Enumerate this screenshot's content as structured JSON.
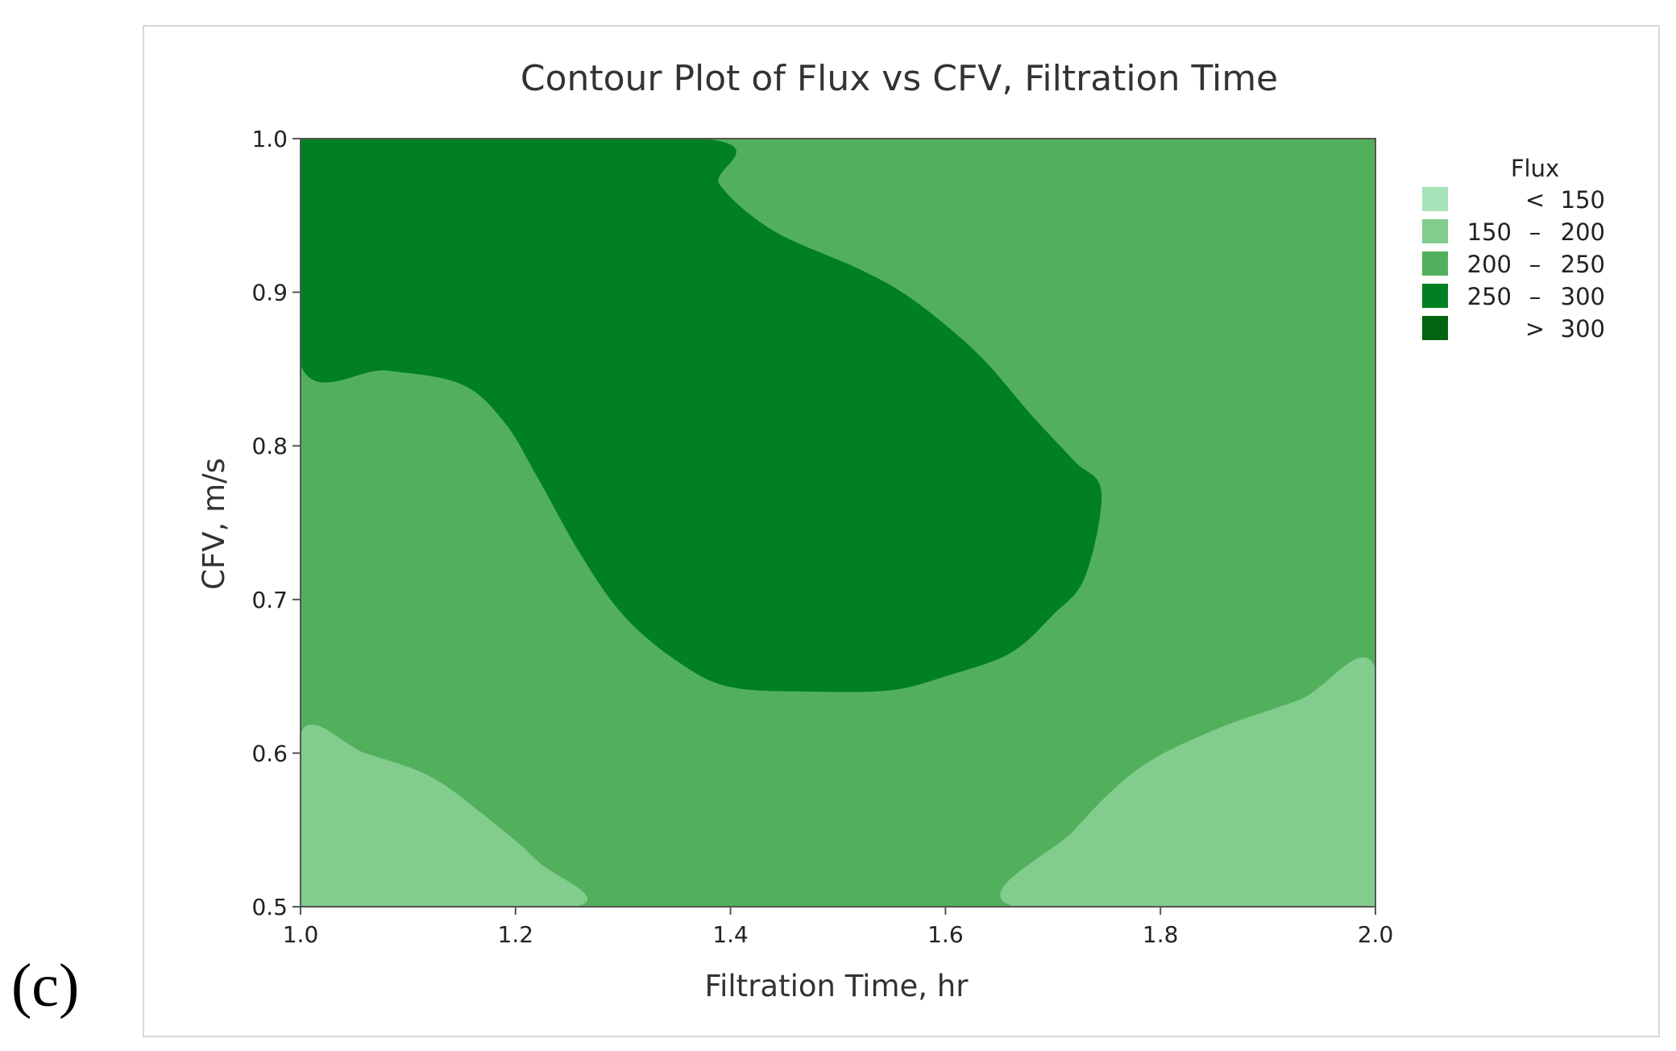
{
  "panel_label": "(c)",
  "chart_data": {
    "type": "contour",
    "title": "Contour Plot of Flux vs CFV, Filtration Time",
    "xlabel": "Filtration Time, hr",
    "ylabel": "CFV, m/s",
    "xlim": [
      1.0,
      2.0
    ],
    "ylim": [
      0.5,
      1.0
    ],
    "xticks": [
      "1.0",
      "1.2",
      "1.4",
      "1.6",
      "1.8",
      "2.0"
    ],
    "yticks": [
      "0.5",
      "0.6",
      "0.7",
      "0.8",
      "0.9",
      "1.0"
    ],
    "grid": false,
    "legend": {
      "title": "Flux",
      "placement": "right",
      "entries": [
        {
          "op": "<",
          "low": "",
          "high": "150",
          "color": "#a6e3b8"
        },
        {
          "op": "–",
          "low": "150",
          "high": "200",
          "color": "#82cc8e"
        },
        {
          "op": "–",
          "low": "200",
          "high": "250",
          "color": "#52b05c"
        },
        {
          "op": "–",
          "low": "250",
          "high": "300",
          "color": "#008020"
        },
        {
          "op": ">",
          "low": "",
          "high": "300",
          "color": "#006410"
        }
      ]
    },
    "regions": [
      {
        "level": "200 – 250",
        "color": "#52b05c",
        "boundary": [
          [
            1.0,
            0.5
          ],
          [
            2.0,
            0.5
          ],
          [
            2.0,
            1.0
          ],
          [
            1.0,
            1.0
          ]
        ]
      },
      {
        "level": "250 – 300",
        "color": "#008020",
        "boundary": [
          [
            1.0,
            1.0
          ],
          [
            1.375,
            1.0
          ],
          [
            1.39,
            0.97
          ],
          [
            1.44,
            0.94
          ],
          [
            1.52,
            0.915
          ],
          [
            1.57,
            0.895
          ],
          [
            1.63,
            0.86
          ],
          [
            1.68,
            0.82
          ],
          [
            1.72,
            0.79
          ],
          [
            1.745,
            0.77
          ],
          [
            1.73,
            0.715
          ],
          [
            1.7,
            0.69
          ],
          [
            1.66,
            0.665
          ],
          [
            1.6,
            0.65
          ],
          [
            1.55,
            0.641
          ],
          [
            1.48,
            0.64
          ],
          [
            1.4,
            0.643
          ],
          [
            1.35,
            0.66
          ],
          [
            1.3,
            0.69
          ],
          [
            1.26,
            0.73
          ],
          [
            1.22,
            0.78
          ],
          [
            1.19,
            0.815
          ],
          [
            1.15,
            0.84
          ],
          [
            1.08,
            0.849
          ],
          [
            1.0,
            0.853
          ]
        ]
      },
      {
        "level": "150 – 200",
        "color": "#82cc8e",
        "boundary": [
          [
            1.0,
            0.613
          ],
          [
            1.06,
            0.6
          ],
          [
            1.12,
            0.585
          ],
          [
            1.17,
            0.56
          ],
          [
            1.22,
            0.53
          ],
          [
            1.255,
            0.5
          ],
          [
            1.0,
            0.5
          ]
        ]
      },
      {
        "level": "150 – 200",
        "color": "#82cc8e",
        "boundary": [
          [
            1.665,
            0.5
          ],
          [
            1.72,
            0.55
          ],
          [
            1.78,
            0.59
          ],
          [
            1.85,
            0.615
          ],
          [
            1.93,
            0.635
          ],
          [
            2.0,
            0.655
          ],
          [
            2.0,
            0.5
          ]
        ]
      }
    ]
  }
}
